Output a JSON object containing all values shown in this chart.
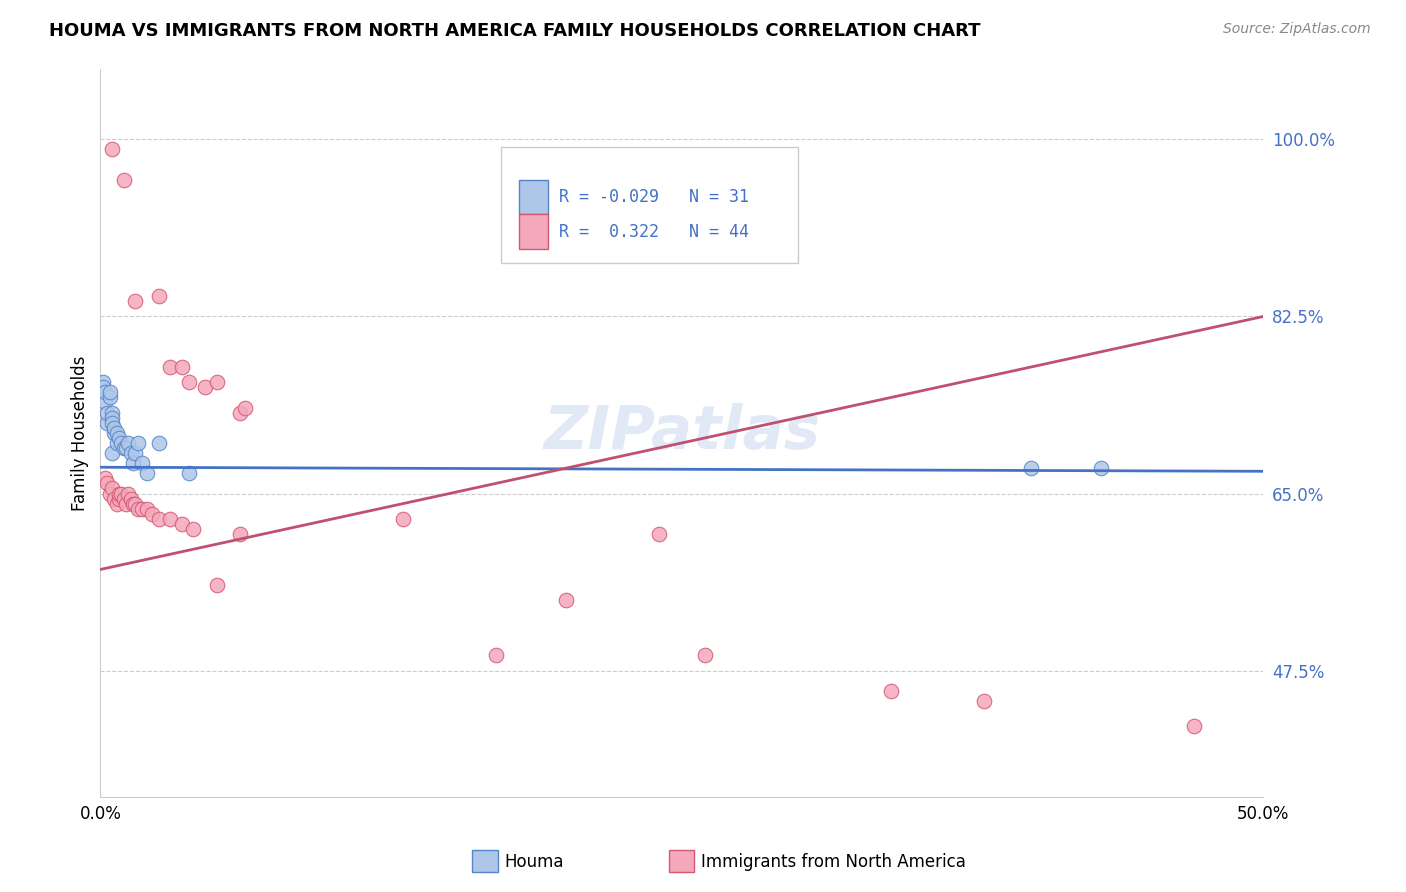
{
  "title": "HOUMA VS IMMIGRANTS FROM NORTH AMERICA FAMILY HOUSEHOLDS CORRELATION CHART",
  "source": "Source: ZipAtlas.com",
  "ylabel": "Family Households",
  "x_min": 0.0,
  "x_max": 0.5,
  "y_min": 0.35,
  "y_max": 1.07,
  "y_tick_positions": [
    0.475,
    0.65,
    0.825,
    1.0
  ],
  "y_tick_labels": [
    "47.5%",
    "65.0%",
    "82.5%",
    "100.0%"
  ],
  "x_tick_labels": [
    "0.0%",
    "50.0%"
  ],
  "houma_R": -0.029,
  "houma_N": 31,
  "immigrants_R": 0.322,
  "immigrants_N": 44,
  "houma_color": "#aec6e8",
  "immigrants_color": "#f4a8bc",
  "houma_edge_color": "#5585c8",
  "immigrants_edge_color": "#d45870",
  "houma_line_color": "#4472c4",
  "immigrants_line_color": "#c05070",
  "legend_label_1": "Houma",
  "legend_label_2": "Immigrants from North America",
  "houma_trend": [
    0.0,
    0.676,
    0.5,
    0.672
  ],
  "immigrants_trend": [
    0.0,
    0.575,
    0.5,
    0.825
  ],
  "houma_scatter": [
    [
      0.001,
      0.76
    ],
    [
      0.001,
      0.755
    ],
    [
      0.002,
      0.74
    ],
    [
      0.002,
      0.75
    ],
    [
      0.003,
      0.72
    ],
    [
      0.003,
      0.73
    ],
    [
      0.004,
      0.745
    ],
    [
      0.004,
      0.75
    ],
    [
      0.005,
      0.73
    ],
    [
      0.005,
      0.725
    ],
    [
      0.005,
      0.72
    ],
    [
      0.005,
      0.69
    ],
    [
      0.006,
      0.71
    ],
    [
      0.006,
      0.715
    ],
    [
      0.007,
      0.7
    ],
    [
      0.007,
      0.71
    ],
    [
      0.008,
      0.705
    ],
    [
      0.009,
      0.7
    ],
    [
      0.01,
      0.695
    ],
    [
      0.011,
      0.695
    ],
    [
      0.012,
      0.7
    ],
    [
      0.013,
      0.69
    ],
    [
      0.014,
      0.68
    ],
    [
      0.015,
      0.69
    ],
    [
      0.016,
      0.7
    ],
    [
      0.018,
      0.68
    ],
    [
      0.02,
      0.67
    ],
    [
      0.025,
      0.7
    ],
    [
      0.038,
      0.67
    ],
    [
      0.4,
      0.675
    ],
    [
      0.43,
      0.675
    ]
  ],
  "immigrants_scatter": [
    [
      0.005,
      0.99
    ],
    [
      0.01,
      0.96
    ],
    [
      0.015,
      0.84
    ],
    [
      0.025,
      0.845
    ],
    [
      0.03,
      0.775
    ],
    [
      0.035,
      0.775
    ],
    [
      0.038,
      0.76
    ],
    [
      0.045,
      0.755
    ],
    [
      0.05,
      0.76
    ],
    [
      0.06,
      0.73
    ],
    [
      0.062,
      0.735
    ],
    [
      0.002,
      0.665
    ],
    [
      0.003,
      0.66
    ],
    [
      0.004,
      0.65
    ],
    [
      0.005,
      0.655
    ],
    [
      0.006,
      0.645
    ],
    [
      0.007,
      0.64
    ],
    [
      0.008,
      0.645
    ],
    [
      0.008,
      0.65
    ],
    [
      0.009,
      0.65
    ],
    [
      0.01,
      0.645
    ],
    [
      0.011,
      0.64
    ],
    [
      0.012,
      0.65
    ],
    [
      0.013,
      0.645
    ],
    [
      0.014,
      0.64
    ],
    [
      0.015,
      0.64
    ],
    [
      0.016,
      0.635
    ],
    [
      0.018,
      0.635
    ],
    [
      0.02,
      0.635
    ],
    [
      0.022,
      0.63
    ],
    [
      0.025,
      0.625
    ],
    [
      0.03,
      0.625
    ],
    [
      0.035,
      0.62
    ],
    [
      0.04,
      0.615
    ],
    [
      0.06,
      0.61
    ],
    [
      0.13,
      0.625
    ],
    [
      0.24,
      0.61
    ],
    [
      0.05,
      0.56
    ],
    [
      0.2,
      0.545
    ],
    [
      0.17,
      0.49
    ],
    [
      0.26,
      0.49
    ],
    [
      0.34,
      0.455
    ],
    [
      0.38,
      0.445
    ],
    [
      0.47,
      0.42
    ]
  ]
}
